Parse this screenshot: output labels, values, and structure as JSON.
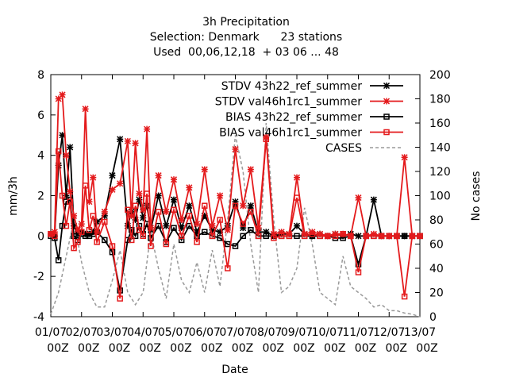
{
  "chart_data": {
    "type": "line",
    "title_lines": [
      "3h Precipitation",
      "Selection: Denmark      23 stations",
      "Used  00,06,12,18  + 03 06 ... 48"
    ],
    "xlabel": "Date",
    "ylabel": "mm/3h",
    "y2label": "No cases",
    "ylim": [
      -4,
      8
    ],
    "y2lim": [
      0,
      200
    ],
    "xlim": [
      0,
      12
    ],
    "yticks": [
      "-4",
      "-2",
      "0",
      "2",
      "4",
      "6",
      "8"
    ],
    "y2ticks": [
      "0",
      "20",
      "40",
      "60",
      "80",
      "100",
      "120",
      "140",
      "160",
      "180",
      "200"
    ],
    "xticks": [
      [
        "01/07",
        "00Z"
      ],
      [
        "02/07",
        "00Z"
      ],
      [
        "03/07",
        "00Z"
      ],
      [
        "04/07",
        "00Z"
      ],
      [
        "05/07",
        "00Z"
      ],
      [
        "06/07",
        "00Z"
      ],
      [
        "07/07",
        "00Z"
      ],
      [
        "08/07",
        "00Z"
      ],
      [
        "09/07",
        "00Z"
      ],
      [
        "10/07",
        "00Z"
      ],
      [
        "11/07",
        "00Z"
      ],
      [
        "12/07",
        "00Z"
      ],
      [
        "13/07",
        "00Z"
      ]
    ],
    "legend_position": "top-right",
    "series": [
      {
        "name": "STDV 43h22_ref_summer",
        "color": "#000000",
        "marker": "star",
        "axis": "y",
        "x": [
          0,
          0.125,
          0.25,
          0.375,
          0.5,
          0.625,
          0.75,
          0.875,
          1.0,
          1.125,
          1.25,
          1.375,
          1.5,
          1.75,
          2.0,
          2.25,
          2.5,
          2.625,
          2.75,
          2.875,
          3.0,
          3.125,
          3.25,
          3.5,
          3.75,
          4.0,
          4.25,
          4.5,
          4.75,
          5.0,
          5.25,
          5.5,
          5.75,
          6.0,
          6.25,
          6.5,
          6.75,
          7.0,
          7.25,
          7.5,
          7.75,
          8.0,
          8.25,
          8.5,
          8.75,
          9.0,
          9.25,
          9.5,
          9.75,
          10.0,
          10.25,
          10.5,
          10.75,
          11.0,
          11.25,
          11.5,
          11.75,
          12.0
        ],
        "y": [
          0.1,
          0.0,
          3.5,
          5.0,
          2.0,
          4.4,
          0.5,
          0.1,
          0.2,
          0.1,
          0.1,
          0.2,
          0.7,
          1.0,
          3.0,
          4.8,
          0.5,
          1.2,
          0.8,
          1.8,
          0.9,
          1.5,
          0.3,
          2.0,
          0.5,
          1.8,
          0.4,
          1.5,
          0.2,
          1.0,
          0.3,
          0.2,
          0.5,
          1.7,
          0.4,
          1.5,
          0.2,
          0.2,
          0.0,
          0.1,
          0.1,
          0.5,
          0.1,
          0.0,
          0.1,
          0.0,
          0.1,
          0.0,
          0.1,
          0.0,
          0.0,
          1.8,
          0.0,
          0.0,
          0.0,
          0.0,
          0.0,
          0.0
        ]
      },
      {
        "name": "STDV val46h1rc1_summer",
        "color": "#e41a1c",
        "marker": "star",
        "axis": "y",
        "x": [
          0,
          0.125,
          0.25,
          0.375,
          0.5,
          0.625,
          0.75,
          0.875,
          1.0,
          1.125,
          1.25,
          1.375,
          1.5,
          1.75,
          2.0,
          2.25,
          2.5,
          2.625,
          2.75,
          2.875,
          3.0,
          3.125,
          3.25,
          3.5,
          3.75,
          4.0,
          4.25,
          4.5,
          4.75,
          5.0,
          5.25,
          5.5,
          5.75,
          6.0,
          6.25,
          6.5,
          6.75,
          7.0,
          7.25,
          7.5,
          7.75,
          8.0,
          8.25,
          8.5,
          8.75,
          9.0,
          9.25,
          9.5,
          9.75,
          10.0,
          10.25,
          10.5,
          10.75,
          11.0,
          11.25,
          11.5,
          11.75,
          12.0
        ],
        "y": [
          0.1,
          0.2,
          6.8,
          7.0,
          4.0,
          2.2,
          1.0,
          0.3,
          0.6,
          6.3,
          1.7,
          2.9,
          0.2,
          1.2,
          2.3,
          2.6,
          4.7,
          1.0,
          4.6,
          2.1,
          1.3,
          5.3,
          0.4,
          3.0,
          1.2,
          2.8,
          0.8,
          2.4,
          0.6,
          3.3,
          0.5,
          2.0,
          0.3,
          4.3,
          1.5,
          3.3,
          0.4,
          4.9,
          0.1,
          0.2,
          0.1,
          2.9,
          0.1,
          0.2,
          0.1,
          0.0,
          0.1,
          0.1,
          0.0,
          1.9,
          0.0,
          0.1,
          0.0,
          0.0,
          0.0,
          3.9,
          0.0,
          0.0
        ]
      },
      {
        "name": "BIAS 43h22_ref_summer",
        "color": "#000000",
        "marker": "square",
        "axis": "y",
        "x": [
          0,
          0.125,
          0.25,
          0.375,
          0.5,
          0.625,
          0.75,
          0.875,
          1.0,
          1.125,
          1.25,
          1.375,
          1.5,
          1.75,
          2.0,
          2.25,
          2.5,
          2.625,
          2.75,
          2.875,
          3.0,
          3.125,
          3.25,
          3.5,
          3.75,
          4.0,
          4.25,
          4.5,
          4.75,
          5.0,
          5.25,
          5.5,
          5.75,
          6.0,
          6.25,
          6.5,
          6.75,
          7.0,
          7.25,
          7.5,
          7.75,
          8.0,
          8.25,
          8.5,
          8.75,
          9.0,
          9.25,
          9.5,
          9.75,
          10.0,
          10.25,
          10.5,
          10.75,
          11.0,
          11.25,
          11.5,
          11.75,
          12.0
        ],
        "y": [
          0.0,
          -0.1,
          -1.2,
          0.5,
          1.7,
          1.8,
          0.0,
          -0.2,
          0.1,
          0.0,
          0.0,
          0.1,
          0.2,
          -0.2,
          -0.8,
          -2.7,
          -0.2,
          0.3,
          0.0,
          0.5,
          0.1,
          0.6,
          -0.1,
          0.5,
          -0.3,
          0.4,
          -0.2,
          0.5,
          0.0,
          0.2,
          0.0,
          -0.1,
          -0.4,
          -0.5,
          0.0,
          0.3,
          0.0,
          0.0,
          0.0,
          0.0,
          0.0,
          0.0,
          0.0,
          0.0,
          0.0,
          0.0,
          -0.1,
          -0.1,
          0.0,
          -1.4,
          0.0,
          0.0,
          0.0,
          0.0,
          0.0,
          0.0,
          0.0,
          0.0
        ]
      },
      {
        "name": "BIAS val46h1rc1_summer",
        "color": "#e41a1c",
        "marker": "square",
        "axis": "y",
        "x": [
          0,
          0.125,
          0.25,
          0.375,
          0.5,
          0.625,
          0.75,
          0.875,
          1.0,
          1.125,
          1.25,
          1.375,
          1.5,
          1.75,
          2.0,
          2.25,
          2.5,
          2.625,
          2.75,
          2.875,
          3.0,
          3.125,
          3.25,
          3.5,
          3.75,
          4.0,
          4.25,
          4.5,
          4.75,
          5.0,
          5.25,
          5.5,
          5.75,
          6.0,
          6.25,
          6.5,
          6.75,
          7.0,
          7.25,
          7.5,
          7.75,
          8.0,
          8.25,
          8.5,
          8.75,
          9.0,
          9.25,
          9.5,
          9.75,
          10.0,
          10.25,
          10.5,
          10.75,
          11.0,
          11.25,
          11.5,
          11.75,
          12.0
        ],
        "y": [
          0.1,
          0.0,
          4.2,
          2.0,
          0.5,
          1.7,
          -0.6,
          -0.3,
          0.2,
          2.5,
          0.3,
          1.0,
          -0.3,
          0.7,
          -0.5,
          -3.1,
          1.3,
          -0.2,
          1.5,
          0.3,
          0.0,
          2.1,
          -0.5,
          1.2,
          -0.4,
          1.3,
          0.0,
          1.0,
          -0.3,
          1.5,
          0.0,
          0.8,
          -1.6,
          1.5,
          0.6,
          1.2,
          0.0,
          4.8,
          -0.1,
          0.0,
          0.0,
          1.9,
          0.0,
          0.1,
          0.0,
          0.0,
          0.0,
          0.1,
          0.0,
          -1.8,
          0.0,
          0.0,
          0.0,
          0.0,
          0.0,
          -3.0,
          0.0,
          0.0
        ]
      },
      {
        "name": "CASES",
        "color": "#999999",
        "marker": "none",
        "dashed": true,
        "axis": "y2",
        "x": [
          0,
          0.25,
          0.5,
          0.75,
          1.0,
          1.25,
          1.5,
          1.75,
          2.0,
          2.25,
          2.5,
          2.75,
          3.0,
          3.25,
          3.5,
          3.75,
          4.0,
          4.25,
          4.5,
          4.75,
          5.0,
          5.25,
          5.5,
          5.75,
          6.0,
          6.25,
          6.5,
          6.75,
          7.0,
          7.25,
          7.5,
          7.75,
          8.0,
          8.25,
          8.5,
          8.75,
          9.0,
          9.25,
          9.5,
          9.75,
          10.0,
          10.25,
          10.5,
          10.75,
          11.0,
          11.25,
          11.5,
          11.75,
          12.0
        ],
        "y": [
          2,
          20,
          50,
          80,
          45,
          20,
          8,
          8,
          30,
          55,
          20,
          10,
          20,
          70,
          40,
          15,
          60,
          30,
          20,
          45,
          20,
          55,
          25,
          80,
          150,
          120,
          60,
          20,
          160,
          80,
          20,
          25,
          40,
          90,
          60,
          20,
          15,
          10,
          50,
          25,
          20,
          15,
          8,
          10,
          5,
          5,
          3,
          2,
          0
        ]
      }
    ]
  }
}
